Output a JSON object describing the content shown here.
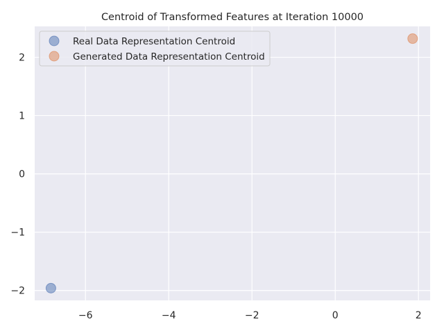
{
  "chart_data": {
    "type": "scatter",
    "title": "Centroid of Transformed Features at Iteration 10000",
    "xlabel": "",
    "ylabel": "",
    "xlim": [
      -7.22,
      2.28
    ],
    "ylim": [
      -2.17,
      2.53
    ],
    "xticks": [
      -6,
      -4,
      -2,
      0,
      2
    ],
    "yticks": [
      -2,
      -1,
      0,
      1,
      2
    ],
    "xtick_labels": [
      "−6",
      "−4",
      "−2",
      "0",
      "2"
    ],
    "ytick_labels": [
      "−2",
      "−1",
      "0",
      "1",
      "2"
    ],
    "grid": true,
    "legend_position": "top-left",
    "series": [
      {
        "name": "Real Data Representation Centroid",
        "color": "#4c72b0",
        "points": [
          {
            "x": -6.83,
            "y": -1.96
          }
        ]
      },
      {
        "name": "Generated Data Representation Centroid",
        "color": "#dd8452",
        "points": [
          {
            "x": 1.86,
            "y": 2.32
          }
        ]
      }
    ]
  }
}
